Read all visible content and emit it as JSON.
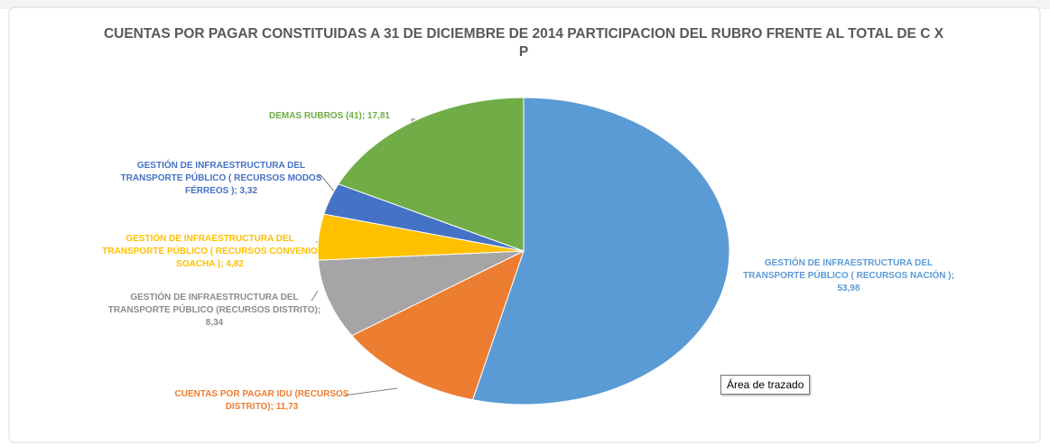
{
  "chart_data": {
    "type": "pie",
    "title": "CUENTAS POR PAGAR CONSTITUIDAS A 31 DE DICIEMBRE DE 2014 PARTICIPACION DEL RUBRO FRENTE AL TOTAL DE C X P",
    "values": [
      53.98,
      11.73,
      8.34,
      4.82,
      3.32,
      17.81
    ],
    "value_labels": [
      "GESTIÓN DE INFRAESTRUCTURA DEL TRANSPORTE PÚBLICO ( RECURSOS NACIÓN ); 53,98",
      "CUENTAS POR PAGAR IDU (RECURSOS DISTRITO); 11,73",
      "GESTIÓN DE INFRAESTRUCTURA DEL TRANSPORTE PÚBLICO (RECURSOS DISTRITO); 8,34",
      "GESTIÓN DE INFRAESTRUCTURA DEL TRANSPORTE PÚBLICO ( RECURSOS CONVENIO SOACHA ); 4,82",
      "GESTIÓN DE INFRAESTRUCTURA DEL TRANSPORTE PÚBLICO ( RECURSOS MODOS FÉRREOS ); 3,32",
      "DEMAS RUBROS (41); 17,81"
    ],
    "colors": [
      "#5b9bd5",
      "#ed7d31",
      "#a5a5a5",
      "#ffc000",
      "#4472c4",
      "#70ad47"
    ],
    "tooltip": "Área de trazado"
  }
}
